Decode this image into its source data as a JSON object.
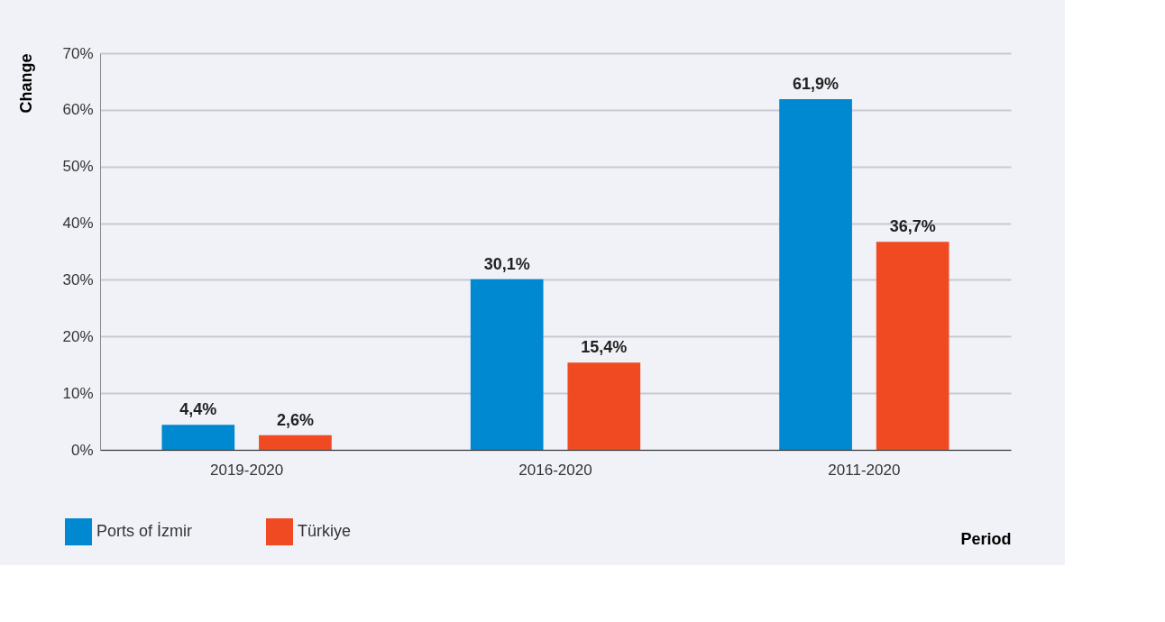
{
  "chart_data": {
    "type": "bar",
    "xlabel": "Period",
    "ylabel": "Change",
    "categories": [
      "2019-2020",
      "2016-2020",
      "2011-2020"
    ],
    "series": [
      {
        "name": "Ports of İzmir",
        "color": "#0088d1",
        "values": [
          4.4,
          30.1,
          61.9
        ],
        "value_labels": [
          "4,4%",
          "30,1%",
          "61,9%"
        ]
      },
      {
        "name": "Türkiye",
        "color": "#f04a23",
        "values": [
          2.6,
          15.4,
          36.7
        ],
        "value_labels": [
          "2,6%",
          "15,4%",
          "36,7%"
        ]
      }
    ],
    "ylim": [
      0,
      70
    ],
    "yticks": [
      {
        "value": 0,
        "label": "0%"
      },
      {
        "value": 10,
        "label": "10%"
      },
      {
        "value": 20,
        "label": "20%"
      },
      {
        "value": 30,
        "label": "30%"
      },
      {
        "value": 40,
        "label": "40%"
      },
      {
        "value": 50,
        "label": "50%"
      },
      {
        "value": 60,
        "label": "60%"
      },
      {
        "value": 70,
        "label": "70%"
      }
    ],
    "grid": "y",
    "legend": "bottom left"
  }
}
